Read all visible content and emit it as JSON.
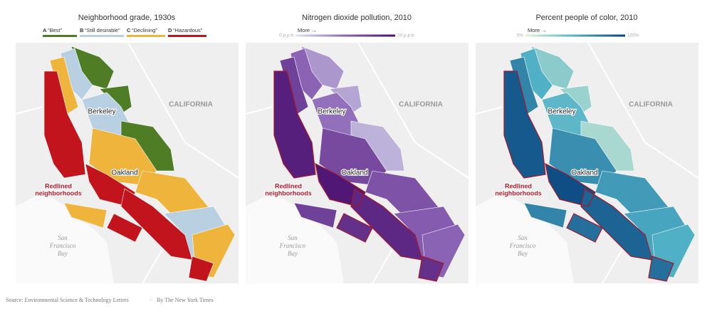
{
  "panels": [
    {
      "title": "Neighborhood grade, 1930s",
      "legend": {
        "items": [
          {
            "letter": "A",
            "label": "“Best”",
            "color": "#4e7d25"
          },
          {
            "letter": "B",
            "label": "“Still desirable”",
            "color": "#b9cfe2"
          },
          {
            "letter": "C",
            "label": "“Declining”",
            "color": "#efb43c"
          },
          {
            "letter": "D",
            "label": "“Hazardous”",
            "color": "#c1141d"
          }
        ]
      },
      "labels": {
        "state": "CALIFORNIA",
        "city_north": "Berkeley",
        "city_south": "Oakland",
        "redlined": [
          "Redlined",
          "neighborhoods"
        ],
        "bay": [
          "San",
          "Francisco",
          "Bay"
        ]
      }
    },
    {
      "title": "Nitrogen dioxide pollution, 2010",
      "legend": {
        "more": "More →",
        "min": "0 p.p.b",
        "max": "20 p.p.b",
        "colors": [
          "#dfe6f2",
          "#8a63b5",
          "#4a0e6e"
        ]
      },
      "labels": {
        "state": "CALIFORNIA",
        "city_north": "Berkeley",
        "city_south": "Oakland",
        "redlined": [
          "Redlined",
          "neighborhoods"
        ],
        "bay": [
          "San",
          "Francisco",
          "Bay"
        ]
      }
    },
    {
      "title": "Percent people of color, 2010",
      "legend": {
        "more": "More →",
        "min": "0%",
        "max": "100%",
        "colors": [
          "#e5f3d6",
          "#4fb0c6",
          "#08437e"
        ]
      },
      "labels": {
        "state": "CALIFORNIA",
        "city_north": "Berkeley",
        "city_south": "Oakland",
        "redlined": [
          "Redlined",
          "neighborhoods"
        ],
        "bay": [
          "San",
          "Francisco",
          "Bay"
        ]
      }
    }
  ],
  "footer": {
    "source": "Source: Environmental Science & Technology Letters",
    "separator": "·",
    "byline": "By The New York Times"
  }
}
